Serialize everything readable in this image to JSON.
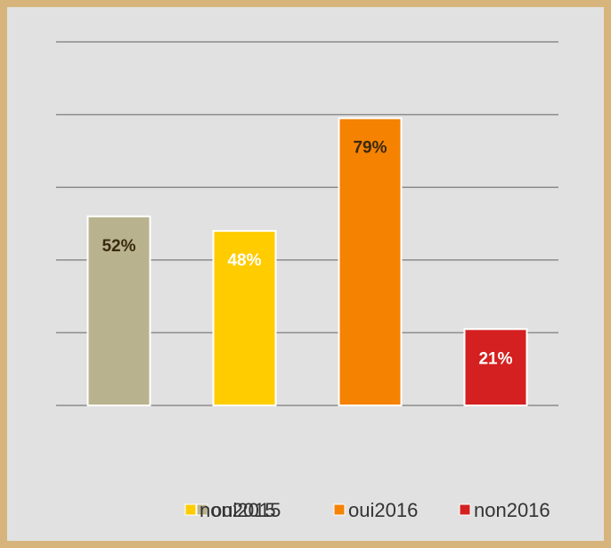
{
  "chart_data": {
    "type": "bar",
    "categories": [
      "oui2015",
      "non2015",
      "oui2016",
      "non2016"
    ],
    "values": [
      52,
      48,
      79,
      21
    ],
    "value_labels": [
      "52%",
      "48%",
      "79%",
      "21%"
    ],
    "colors": [
      "#b9b28e",
      "#ffcc00",
      "#f58200",
      "#d42020"
    ],
    "label_colors": [
      "#3a2a10",
      "#ffffff",
      "#3a2a10",
      "#ffffff"
    ],
    "ylim": [
      0,
      100
    ],
    "yticks": [
      0,
      20,
      40,
      60,
      80,
      100
    ],
    "grid": true,
    "legend": "bottom"
  }
}
